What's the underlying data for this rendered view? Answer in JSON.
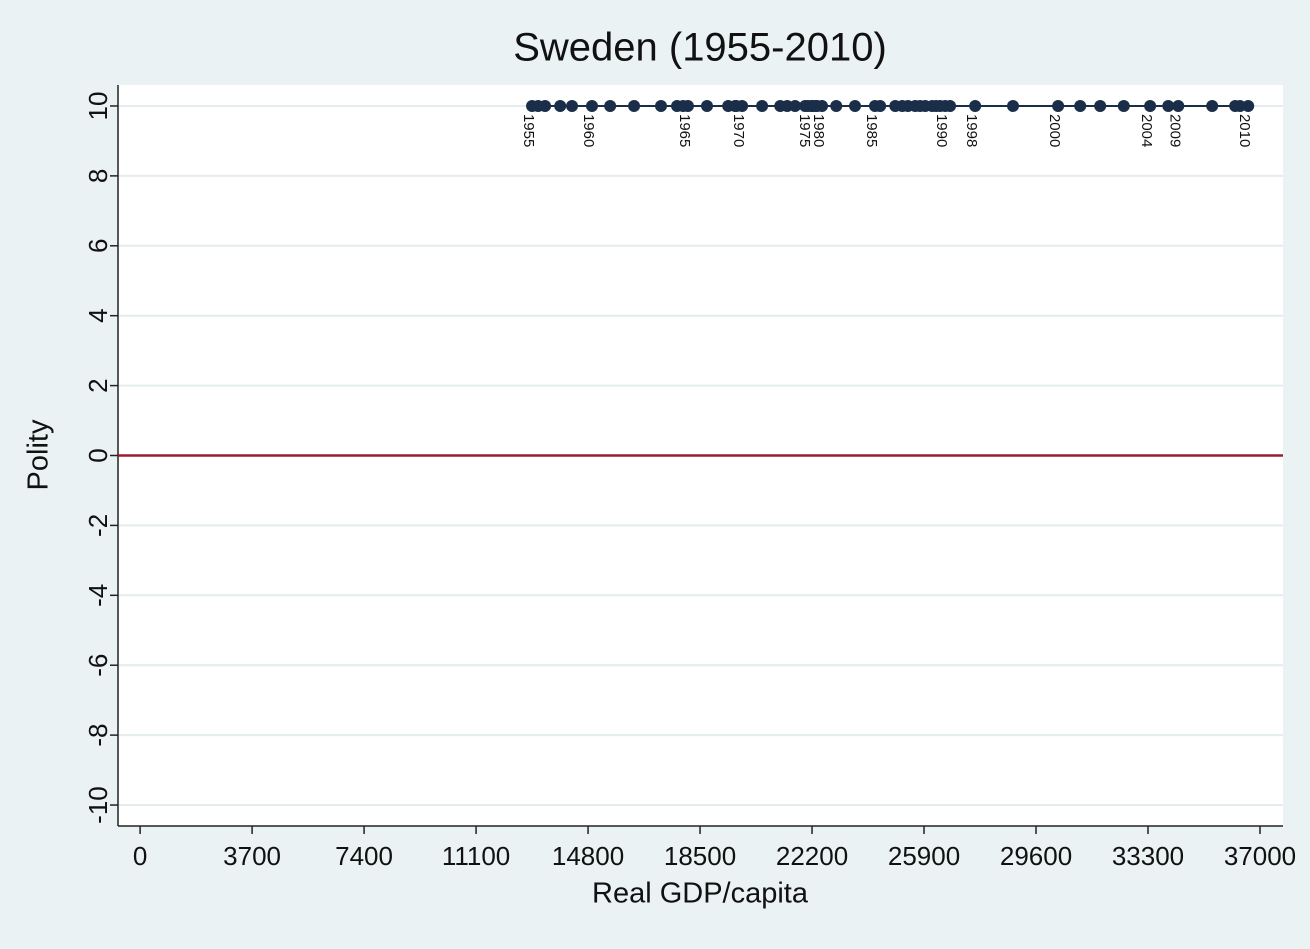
{
  "chart_data": {
    "type": "scatter",
    "title": "Sweden (1955-2010)",
    "x_label": "Real GDP/capita",
    "y_label": "Polity",
    "x": [
      12950,
      13150,
      13380,
      13880,
      14270,
      14930,
      15530,
      16320,
      17210,
      17740,
      18100,
      17940,
      18730,
      19430,
      19660,
      19890,
      19700,
      20550,
      21150,
      21640,
      22070,
      22200,
      21970,
      21380,
      22370,
      22530,
      22200,
      22300,
      23000,
      23620,
      24280,
      24450,
      24950,
      25370,
      25770,
      26600,
      26430,
      25940,
      25180,
      25610,
      26170,
      26300,
      26760,
      27590,
      28840,
      30330,
      31060,
      31720,
      32500,
      33370,
      33970,
      35420,
      36340,
      36180,
      34300,
      36610
    ],
    "values": [
      10,
      10,
      10,
      10,
      10,
      10,
      10,
      10,
      10,
      10,
      10,
      10,
      10,
      10,
      10,
      10,
      10,
      10,
      10,
      10,
      10,
      10,
      10,
      10,
      10,
      10,
      10,
      10,
      10,
      10,
      10,
      10,
      10,
      10,
      10,
      10,
      10,
      10,
      10,
      10,
      10,
      10,
      10,
      10,
      10,
      10,
      10,
      10,
      10,
      10,
      10,
      10,
      10,
      10,
      10,
      10
    ],
    "point_labels": [
      "1955",
      null,
      null,
      null,
      null,
      "1960",
      null,
      null,
      null,
      null,
      "1965",
      null,
      null,
      null,
      null,
      "1970",
      null,
      null,
      null,
      null,
      "1975",
      null,
      null,
      null,
      null,
      "1980",
      null,
      null,
      null,
      null,
      "1985",
      null,
      null,
      null,
      null,
      "1990",
      null,
      null,
      null,
      null,
      null,
      null,
      null,
      "1998",
      null,
      "2000",
      null,
      null,
      null,
      "2004",
      null,
      null,
      null,
      null,
      "2009",
      "2010"
    ],
    "color": "#1a2e4a",
    "connected": true,
    "reference_line": {
      "y": 0,
      "color": "#9b1b30"
    },
    "xlim": [
      -730,
      37760
    ],
    "ylim": [
      -10.6,
      10.6
    ],
    "xticks": [
      0,
      3700,
      7400,
      11100,
      14800,
      18500,
      22200,
      25900,
      29600,
      33300,
      37000
    ],
    "yticks": [
      -10,
      -8,
      -6,
      -4,
      -2,
      0,
      2,
      4,
      6,
      8,
      10
    ],
    "grid": true
  }
}
